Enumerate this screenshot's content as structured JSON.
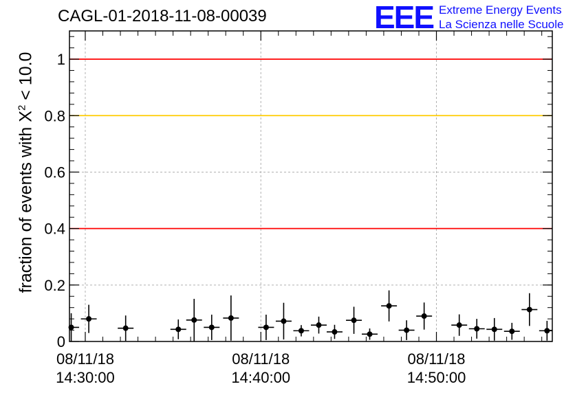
{
  "title": "CAGL-01-2018-11-08-00039",
  "logo": {
    "mark": "EEE",
    "line1": "Extreme Energy Events",
    "line2": "La Scienza nelle Scuole"
  },
  "ylabel_prefix": "fraction of events with X",
  "ylabel_sup": "2",
  "ylabel_suffix": " < 10.0",
  "colors": {
    "points": "#000000",
    "red_line": "#ff0000",
    "yellow_line": "#ffcc00",
    "grid": "#b0b0b0",
    "logo": "#1010ff"
  },
  "chart_data": {
    "type": "scatter",
    "title": "CAGL-01-2018-11-08-00039",
    "ylabel": "fraction of events with X^2 < 10.0",
    "x_unit": "minutes",
    "xlim": [
      -0.9,
      26.6
    ],
    "ylim": [
      0,
      1.1
    ],
    "grid": true,
    "yticks": [
      {
        "value": 0,
        "label": "0"
      },
      {
        "value": 0.2,
        "label": "0.2"
      },
      {
        "value": 0.4,
        "label": "0.4"
      },
      {
        "value": 0.6,
        "label": "0.6"
      },
      {
        "value": 0.8,
        "label": "0.8"
      },
      {
        "value": 1,
        "label": "1"
      }
    ],
    "xticks": [
      {
        "value": 0,
        "label1": "08/11/18",
        "label2": "14:30:00"
      },
      {
        "value": 10,
        "label1": "08/11/18",
        "label2": "14:40:00"
      },
      {
        "value": 20,
        "label1": "08/11/18",
        "label2": "14:50:00"
      }
    ],
    "reference_lines": [
      {
        "y": 1.0,
        "color": "#ff0000"
      },
      {
        "y": 0.8,
        "color": "#ffcc00"
      },
      {
        "y": 0.4,
        "color": "#ff0000"
      }
    ],
    "points": [
      {
        "x": -0.8,
        "y": 0.05,
        "yerr": 0.05
      },
      {
        "x": 0.2,
        "y": 0.08,
        "yerr": 0.05
      },
      {
        "x": 2.3,
        "y": 0.047,
        "yerr": 0.045
      },
      {
        "x": 5.3,
        "y": 0.043,
        "yerr": 0.035
      },
      {
        "x": 6.2,
        "y": 0.076,
        "yerr": 0.075
      },
      {
        "x": 7.2,
        "y": 0.05,
        "yerr": 0.045
      },
      {
        "x": 8.3,
        "y": 0.083,
        "yerr": 0.08
      },
      {
        "x": 10.3,
        "y": 0.05,
        "yerr": 0.045
      },
      {
        "x": 11.3,
        "y": 0.072,
        "yerr": 0.065
      },
      {
        "x": 12.3,
        "y": 0.038,
        "yerr": 0.02
      },
      {
        "x": 13.3,
        "y": 0.058,
        "yerr": 0.03
      },
      {
        "x": 14.2,
        "y": 0.034,
        "yerr": 0.025
      },
      {
        "x": 15.3,
        "y": 0.075,
        "yerr": 0.048
      },
      {
        "x": 16.2,
        "y": 0.026,
        "yerr": 0.02
      },
      {
        "x": 17.3,
        "y": 0.126,
        "yerr": 0.055
      },
      {
        "x": 18.3,
        "y": 0.04,
        "yerr": 0.035
      },
      {
        "x": 19.3,
        "y": 0.09,
        "yerr": 0.048
      },
      {
        "x": 21.3,
        "y": 0.058,
        "yerr": 0.038
      },
      {
        "x": 22.3,
        "y": 0.045,
        "yerr": 0.035
      },
      {
        "x": 23.3,
        "y": 0.043,
        "yerr": 0.04
      },
      {
        "x": 24.3,
        "y": 0.036,
        "yerr": 0.03
      },
      {
        "x": 25.3,
        "y": 0.113,
        "yerr": 0.058
      },
      {
        "x": 26.3,
        "y": 0.038,
        "yerr": 0.035
      }
    ]
  }
}
